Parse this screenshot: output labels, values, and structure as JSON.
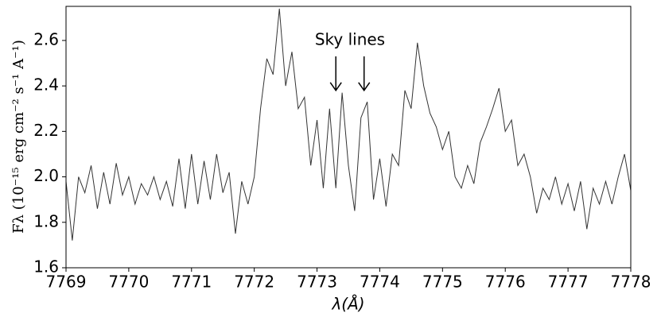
{
  "chart_data": {
    "type": "line",
    "xlabel": "λ(Å)",
    "ylabel": "Fλ (10⁻¹⁵ erg cm⁻² s⁻¹ A⁻¹)",
    "x": [
      7769.0,
      7769.1,
      7769.2,
      7769.3,
      7769.4,
      7769.5,
      7769.6,
      7769.7,
      7769.8,
      7769.9,
      7770.0,
      7770.1,
      7770.2,
      7770.3,
      7770.4,
      7770.5,
      7770.6,
      7770.7,
      7770.8,
      7770.9,
      7771.0,
      7771.1,
      7771.2,
      7771.3,
      7771.4,
      7771.5,
      7771.6,
      7771.7,
      7771.8,
      7771.9,
      7772.0,
      7772.1,
      7772.2,
      7772.3,
      7772.4,
      7772.5,
      7772.6,
      7772.7,
      7772.8,
      7772.9,
      7773.0,
      7773.1,
      7773.2,
      7773.3,
      7773.4,
      7773.5,
      7773.6,
      7773.7,
      7773.8,
      7773.9,
      7774.0,
      7774.1,
      7774.2,
      7774.3,
      7774.4,
      7774.5,
      7774.6,
      7774.7,
      7774.8,
      7774.9,
      7775.0,
      7775.1,
      7775.2,
      7775.3,
      7775.4,
      7775.5,
      7775.6,
      7775.7,
      7775.8,
      7775.9,
      7776.0,
      7776.1,
      7776.2,
      7776.3,
      7776.4,
      7776.5,
      7776.6,
      7776.7,
      7776.8,
      7776.9,
      7777.0,
      7777.1,
      7777.2,
      7777.3,
      7777.4,
      7777.5,
      7777.6,
      7777.7,
      7777.8,
      7777.9,
      7778.0
    ],
    "values": [
      1.98,
      1.72,
      2.0,
      1.93,
      2.05,
      1.86,
      2.02,
      1.88,
      2.06,
      1.92,
      2.0,
      1.88,
      1.97,
      1.92,
      2.0,
      1.9,
      1.98,
      1.87,
      2.08,
      1.86,
      2.1,
      1.88,
      2.07,
      1.9,
      2.1,
      1.93,
      2.02,
      1.75,
      1.98,
      1.88,
      2.0,
      2.3,
      2.52,
      2.45,
      2.74,
      2.4,
      2.55,
      2.3,
      2.35,
      2.05,
      2.25,
      1.95,
      2.3,
      1.95,
      2.37,
      2.05,
      1.85,
      2.26,
      2.33,
      1.9,
      2.08,
      1.87,
      2.1,
      2.05,
      2.38,
      2.3,
      2.59,
      2.4,
      2.28,
      2.22,
      2.12,
      2.2,
      2.0,
      1.95,
      2.05,
      1.97,
      2.15,
      2.22,
      2.3,
      2.39,
      2.2,
      2.25,
      2.05,
      2.1,
      2.0,
      1.84,
      1.95,
      1.9,
      2.0,
      1.88,
      1.97,
      1.85,
      1.98,
      1.77,
      1.95,
      1.88,
      1.98,
      1.88,
      2.0,
      2.1,
      1.94
    ],
    "color": "#333333",
    "xlim": [
      7769,
      7778
    ],
    "xticks": [
      7769,
      7770,
      7771,
      7772,
      7773,
      7774,
      7775,
      7776,
      7777,
      7778
    ],
    "ylim": [
      1.6,
      2.75
    ],
    "yticks": [
      1.6,
      1.8,
      {
        "value": 2.0,
        "label": "2.0"
      },
      2.2,
      2.4,
      2.6
    ],
    "annotation": {
      "text": "Sky lines",
      "arrows": [
        {
          "x": 7773.3,
          "y_from": 2.53,
          "y_to": 2.38
        },
        {
          "x": 7773.75,
          "y_from": 2.53,
          "y_to": 2.38
        }
      ]
    }
  }
}
